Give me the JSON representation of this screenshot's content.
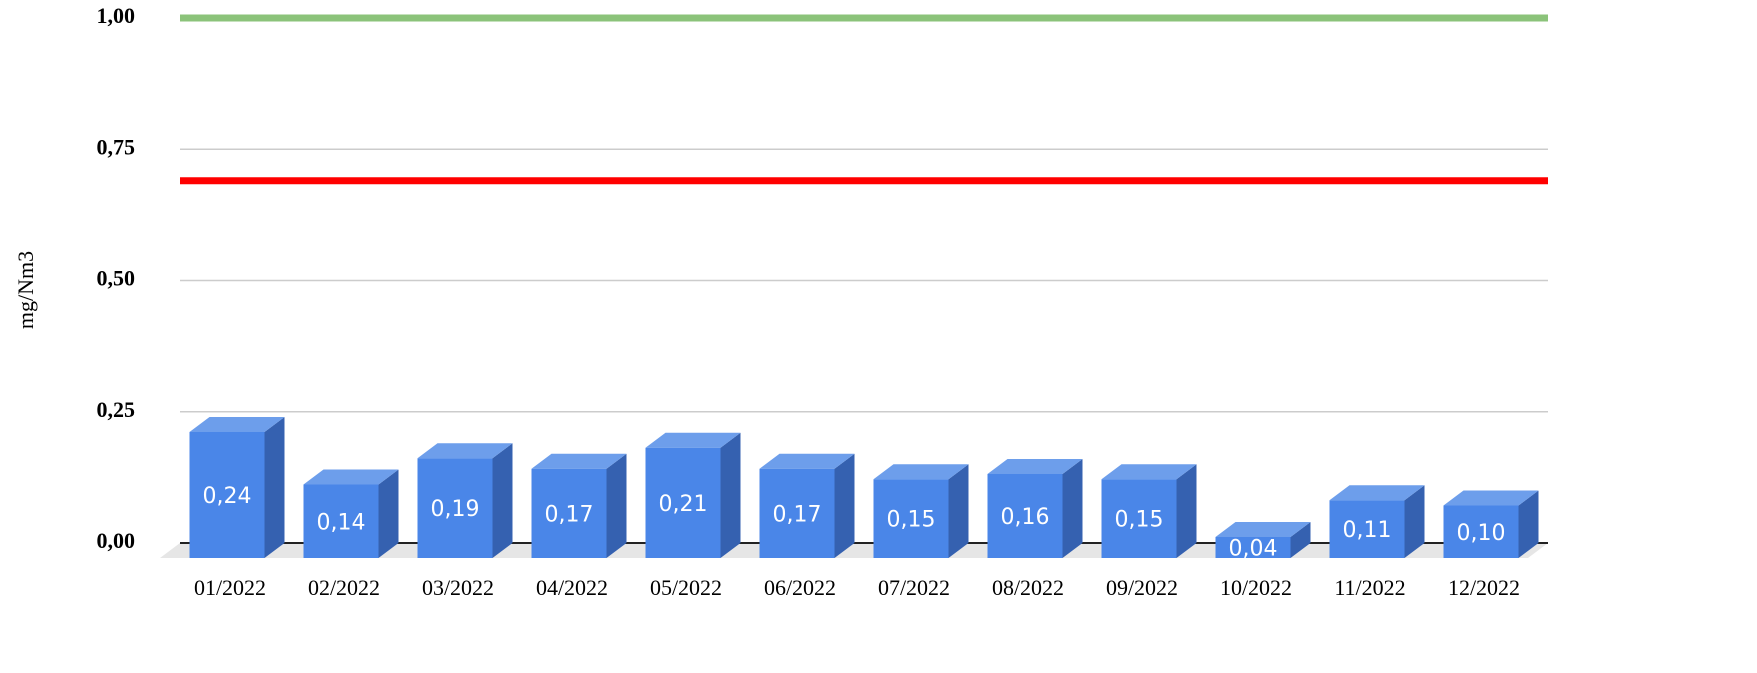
{
  "chart_data": {
    "type": "bar3d",
    "y_label": "mg/Nm3",
    "categories": [
      "01/2022",
      "02/2022",
      "03/2022",
      "04/2022",
      "05/2022",
      "06/2022",
      "07/2022",
      "08/2022",
      "09/2022",
      "10/2022",
      "11/2022",
      "12/2022"
    ],
    "values": [
      0.24,
      0.14,
      0.19,
      0.17,
      0.21,
      0.17,
      0.15,
      0.16,
      0.15,
      0.04,
      0.11,
      0.1
    ],
    "value_labels": [
      "0,24",
      "0,14",
      "0,19",
      "0,17",
      "0,21",
      "0,17",
      "0,15",
      "0,16",
      "0,15",
      "0,04",
      "0,11",
      "0,10"
    ],
    "color": "#4a86e8",
    "ylim": [
      0,
      1
    ],
    "yticks": [
      {
        "value": 0,
        "label": "0,00"
      },
      {
        "value": 0.25,
        "label": "0,25"
      },
      {
        "value": 0.5,
        "label": "0,50"
      },
      {
        "value": 0.75,
        "label": "0,75"
      },
      {
        "value": 1,
        "label": "1,00"
      }
    ],
    "grid": true,
    "reference_lines": [
      {
        "value": 1.0,
        "color": "#8bc37a"
      },
      {
        "value": 0.69,
        "color": "#ff0000"
      }
    ]
  }
}
